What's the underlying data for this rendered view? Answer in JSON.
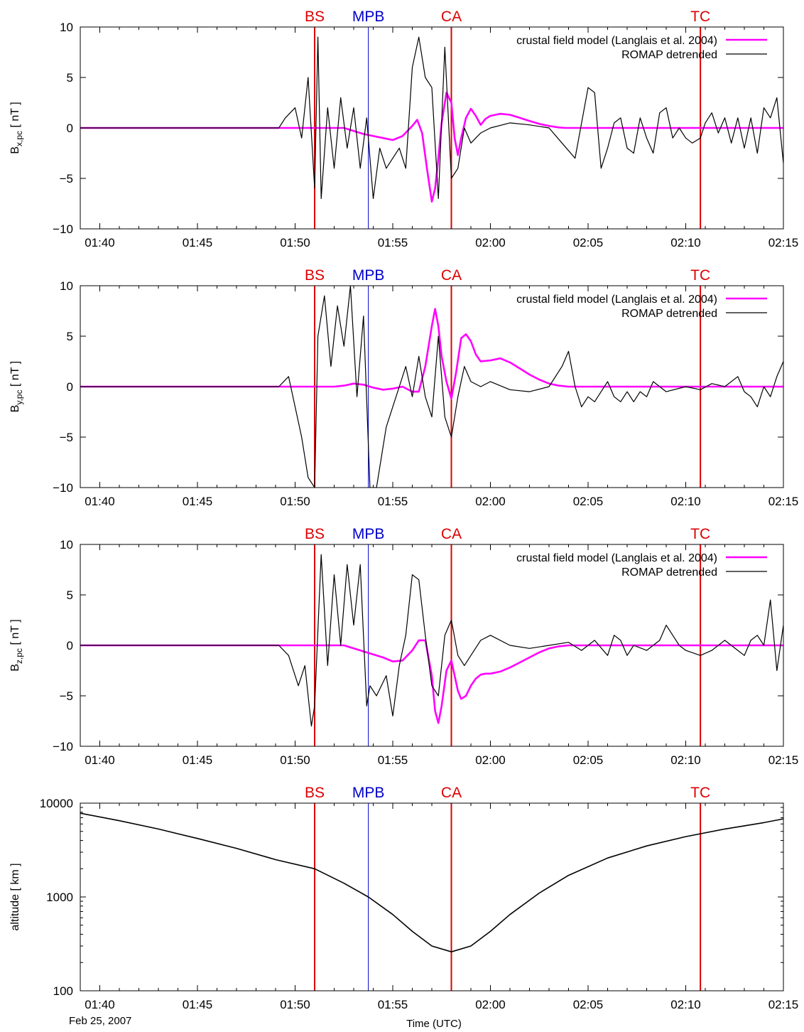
{
  "figure": {
    "date_label": "Feb 25, 2007",
    "xlabel": "Time (UTC)"
  },
  "colors": {
    "model": "#ff00ff",
    "romap": "#000000",
    "red_marker": "#dd0000",
    "blue_marker": "#0000cc"
  },
  "markers": [
    {
      "label": "BS",
      "time": "01:51:00",
      "color": "red"
    },
    {
      "label": "MPB",
      "time": "01:53:45",
      "color": "blue"
    },
    {
      "label": "CA",
      "time": "01:58:00",
      "color": "red"
    },
    {
      "label": "TC",
      "time": "02:10:45",
      "color": "red"
    }
  ],
  "chart_data": [
    {
      "type": "line",
      "ylabel": "B_x,pc [ nT ]",
      "ylabel_main": "B",
      "ylabel_sub": "x,pc",
      "ylabel_unit": " [ nT ]",
      "xlim": [
        "01:39:00",
        "02:15:00"
      ],
      "ylim": [
        -10,
        10
      ],
      "xticks": [
        "01:40",
        "01:45",
        "01:50",
        "01:55",
        "02:00",
        "02:05",
        "02:10",
        "02:15"
      ],
      "yticks": [
        "10",
        "5",
        "0",
        "−5",
        "−10"
      ],
      "yticks_values": [
        10,
        5,
        0,
        -5,
        -10
      ],
      "legend": [
        "crustal field model (Langlais et al. 2004)",
        "ROMAP detrended"
      ],
      "legend_position": "top-right",
      "series": [
        {
          "name": "crustal field model (Langlais et al. 2004)",
          "x": [
            "01:39:00",
            "01:52:30",
            "01:53:00",
            "01:53:30",
            "01:54:00",
            "01:54:30",
            "01:55:00",
            "01:55:30",
            "01:56:00",
            "01:56:15",
            "01:56:30",
            "01:56:45",
            "01:57:00",
            "01:57:10",
            "01:57:20",
            "01:57:30",
            "01:57:45",
            "01:58:00",
            "01:58:10",
            "01:58:20",
            "01:58:30",
            "01:58:45",
            "01:59:00",
            "01:59:15",
            "01:59:30",
            "01:59:45",
            "02:00:00",
            "02:00:30",
            "02:01:00",
            "02:01:30",
            "02:02:00",
            "02:02:30",
            "02:03:00",
            "02:03:30",
            "02:03:50",
            "02:15:00"
          ],
          "y": [
            0,
            0,
            -0.3,
            -0.6,
            -0.8,
            -1.0,
            -1.2,
            -0.8,
            0.2,
            0.8,
            -0.5,
            -4,
            -7.3,
            -6,
            -3,
            0.5,
            3.5,
            2.5,
            -1,
            -2.7,
            -1,
            1,
            1.9,
            1.2,
            0.3,
            0.9,
            1.2,
            1.4,
            1.3,
            1.0,
            0.7,
            0.4,
            0.2,
            0.05,
            0,
            0
          ]
        },
        {
          "name": "ROMAP detrended",
          "x": [
            "01:39:00",
            "01:49:10",
            "01:49:30",
            "01:50:00",
            "01:50:20",
            "01:50:40",
            "01:51:00",
            "01:51:10",
            "01:51:20",
            "01:51:40",
            "01:52:00",
            "01:52:20",
            "01:52:40",
            "01:53:00",
            "01:53:20",
            "01:53:40",
            "01:54:00",
            "01:54:20",
            "01:54:40",
            "01:55:00",
            "01:55:20",
            "01:55:40",
            "01:56:00",
            "01:56:20",
            "01:56:40",
            "01:57:00",
            "01:57:20",
            "01:57:40",
            "01:58:00",
            "01:58:20",
            "01:58:40",
            "01:59:00",
            "01:59:30",
            "02:00:00",
            "02:01:00",
            "02:02:00",
            "02:03:00",
            "02:03:40",
            "02:04:20",
            "02:05:00",
            "02:05:20",
            "02:05:40",
            "02:06:00",
            "02:06:20",
            "02:06:40",
            "02:07:00",
            "02:07:20",
            "02:07:40",
            "02:08:00",
            "02:08:20",
            "02:08:40",
            "02:09:00",
            "02:09:20",
            "02:09:40",
            "02:10:00",
            "02:10:20",
            "02:10:45",
            "02:11:00",
            "02:11:20",
            "02:11:40",
            "02:12:00",
            "02:12:20",
            "02:12:40",
            "02:13:00",
            "02:13:20",
            "02:13:40",
            "02:14:00",
            "02:14:20",
            "02:14:40",
            "02:15:00"
          ],
          "y": [
            0,
            0,
            1,
            2,
            -1,
            5,
            -6,
            9,
            -7,
            2,
            -4,
            3,
            -2,
            2,
            -4,
            1,
            -7,
            -2,
            -4,
            -3,
            -2,
            -4,
            6,
            9,
            5,
            4,
            -7,
            8,
            -5,
            -4,
            0,
            -1.5,
            -0.5,
            0,
            0.5,
            0.3,
            0,
            -1.5,
            -3,
            4,
            3.5,
            -4,
            -2,
            0.5,
            1,
            -2,
            -2.5,
            1,
            -1,
            -2.5,
            1.5,
            2,
            -1,
            0,
            -1,
            -1.5,
            -1,
            0.5,
            1.5,
            -0.5,
            1,
            -1.5,
            1,
            -2,
            1,
            -2.5,
            2,
            1,
            3,
            -3.5
          ]
        }
      ]
    },
    {
      "type": "line",
      "ylabel": "B_y,pc [ nT ]",
      "ylabel_main": "B",
      "ylabel_sub": "y,pc",
      "ylabel_unit": " [ nT ]",
      "xlim": [
        "01:39:00",
        "02:15:00"
      ],
      "ylim": [
        -10,
        10
      ],
      "xticks": [
        "01:40",
        "01:45",
        "01:50",
        "01:55",
        "02:00",
        "02:05",
        "02:10",
        "02:15"
      ],
      "yticks": [
        "10",
        "5",
        "0",
        "−5",
        "−10"
      ],
      "yticks_values": [
        10,
        5,
        0,
        -5,
        -10
      ],
      "legend": [
        "crustal field model (Langlais et al. 2004)",
        "ROMAP detrended"
      ],
      "legend_position": "top-right",
      "series": [
        {
          "name": "crustal field model (Langlais et al. 2004)",
          "x": [
            "01:39:00",
            "01:52:00",
            "01:52:30",
            "01:53:00",
            "01:53:30",
            "01:54:00",
            "01:54:30",
            "01:55:00",
            "01:55:30",
            "01:56:00",
            "01:56:20",
            "01:56:40",
            "01:57:00",
            "01:57:10",
            "01:57:20",
            "01:57:30",
            "01:57:45",
            "01:58:00",
            "01:58:15",
            "01:58:30",
            "01:58:45",
            "01:59:00",
            "01:59:15",
            "01:59:30",
            "02:00:00",
            "02:00:30",
            "02:01:00",
            "02:01:30",
            "02:02:00",
            "02:02:30",
            "02:03:00",
            "02:03:30",
            "02:04:00",
            "02:15:00"
          ],
          "y": [
            0,
            0,
            0.1,
            0.3,
            0.2,
            -0.1,
            -0.3,
            -0.2,
            0,
            -0.5,
            -0.5,
            2,
            6,
            7.7,
            6,
            3,
            0.5,
            -1.2,
            1.5,
            4.8,
            5.2,
            4.5,
            3.2,
            2.5,
            2.6,
            2.8,
            2.4,
            1.8,
            1.2,
            0.7,
            0.3,
            0.1,
            0,
            0
          ]
        },
        {
          "name": "ROMAP detrended",
          "x": [
            "01:39:00",
            "01:49:10",
            "01:49:40",
            "01:50:00",
            "01:50:20",
            "01:50:40",
            "01:51:00",
            "01:51:10",
            "01:51:30",
            "01:51:50",
            "01:52:10",
            "01:52:30",
            "01:52:50",
            "01:53:10",
            "01:53:30",
            "01:53:50",
            "01:54:10",
            "01:54:40",
            "01:55:00",
            "01:55:20",
            "01:55:40",
            "01:56:00",
            "01:56:20",
            "01:56:40",
            "01:57:00",
            "01:57:20",
            "01:57:40",
            "01:58:00",
            "01:58:20",
            "01:58:40",
            "01:59:00",
            "01:59:30",
            "02:00:00",
            "02:01:00",
            "02:02:00",
            "02:03:00",
            "02:03:40",
            "02:04:00",
            "02:04:20",
            "02:04:40",
            "02:05:00",
            "02:05:20",
            "02:05:40",
            "02:06:00",
            "02:06:20",
            "02:06:40",
            "02:07:00",
            "02:07:20",
            "02:07:40",
            "02:08:00",
            "02:08:20",
            "02:08:40",
            "02:09:00",
            "02:10:00",
            "02:10:45",
            "02:11:20",
            "02:12:00",
            "02:12:40",
            "02:13:00",
            "02:13:20",
            "02:13:40",
            "02:14:00",
            "02:14:20",
            "02:14:40",
            "02:15:00"
          ],
          "y": [
            0,
            0,
            1,
            -2,
            -5,
            -9,
            -10,
            5,
            9,
            2,
            8,
            4,
            10,
            -1,
            7,
            -10,
            -10,
            -4,
            -2,
            0,
            2,
            -1,
            3,
            -1,
            -3,
            5,
            -3,
            -5,
            -1,
            2,
            0.5,
            0,
            0.5,
            -0.3,
            -0.5,
            0,
            2,
            3.5,
            0,
            -2,
            -1,
            -1.5,
            -0.5,
            0.5,
            -1,
            -1.5,
            -0.5,
            -1.5,
            -0.5,
            -1,
            0.5,
            0,
            -0.5,
            0,
            -0.3,
            0.3,
            0,
            1,
            -0.5,
            -1,
            -2,
            0,
            -1,
            1,
            2.5
          ]
        }
      ]
    },
    {
      "type": "line",
      "ylabel": "B_z,pc [ nT ]",
      "ylabel_main": "B",
      "ylabel_sub": "z,pc",
      "ylabel_unit": " [ nT ]",
      "xlim": [
        "01:39:00",
        "02:15:00"
      ],
      "ylim": [
        -10,
        10
      ],
      "xticks": [
        "01:40",
        "01:45",
        "01:50",
        "01:55",
        "02:00",
        "02:05",
        "02:10",
        "02:15"
      ],
      "yticks": [
        "10",
        "5",
        "0",
        "−5",
        "−10"
      ],
      "yticks_values": [
        10,
        5,
        0,
        -5,
        -10
      ],
      "legend": [
        "crustal field model (Langlais et al. 2004)",
        "ROMAP detrended"
      ],
      "legend_position": "top-right",
      "series": [
        {
          "name": "crustal field model (Langlais et al. 2004)",
          "x": [
            "01:39:00",
            "01:52:30",
            "01:53:00",
            "01:53:30",
            "01:54:00",
            "01:54:30",
            "01:55:00",
            "01:55:30",
            "01:56:00",
            "01:56:20",
            "01:56:40",
            "01:57:00",
            "01:57:10",
            "01:57:20",
            "01:57:30",
            "01:57:45",
            "01:58:00",
            "01:58:10",
            "01:58:20",
            "01:58:30",
            "01:58:45",
            "01:59:00",
            "01:59:15",
            "01:59:30",
            "01:59:45",
            "02:00:00",
            "02:00:30",
            "02:01:00",
            "02:01:30",
            "02:02:00",
            "02:02:30",
            "02:03:00",
            "02:03:30",
            "02:04:00",
            "02:15:00"
          ],
          "y": [
            0,
            0,
            -0.3,
            -0.6,
            -0.9,
            -1.2,
            -1.6,
            -1.5,
            -0.5,
            0.5,
            0.5,
            -3,
            -6.5,
            -7.7,
            -6,
            -2.5,
            -1.5,
            -3,
            -4.5,
            -5.3,
            -5,
            -4,
            -3.3,
            -2.9,
            -2.8,
            -2.8,
            -2.6,
            -2.2,
            -1.7,
            -1.2,
            -0.7,
            -0.3,
            -0.1,
            0,
            0
          ]
        },
        {
          "name": "ROMAP detrended",
          "x": [
            "01:39:00",
            "01:49:10",
            "01:49:40",
            "01:50:10",
            "01:50:30",
            "01:50:50",
            "01:51:00",
            "01:51:20",
            "01:51:40",
            "01:52:00",
            "01:52:20",
            "01:52:40",
            "01:53:00",
            "01:53:20",
            "01:53:40",
            "01:53:50",
            "01:54:10",
            "01:54:40",
            "01:55:00",
            "01:55:20",
            "01:55:40",
            "01:56:00",
            "01:56:20",
            "01:56:40",
            "01:57:00",
            "01:57:20",
            "01:57:40",
            "01:58:00",
            "01:58:20",
            "01:58:40",
            "01:59:00",
            "01:59:30",
            "02:00:00",
            "02:01:00",
            "02:02:00",
            "02:03:00",
            "02:04:00",
            "02:04:40",
            "02:05:20",
            "02:06:00",
            "02:06:20",
            "02:06:40",
            "02:07:00",
            "02:07:20",
            "02:08:00",
            "02:08:40",
            "02:09:00",
            "02:09:20",
            "02:09:40",
            "02:10:00",
            "02:10:45",
            "02:11:20",
            "02:12:00",
            "02:12:40",
            "02:13:00",
            "02:13:20",
            "02:13:40",
            "02:14:00",
            "02:14:20",
            "02:14:40",
            "02:15:00"
          ],
          "y": [
            0,
            0,
            -1,
            -4,
            -2,
            -8,
            -6,
            9,
            -2,
            7,
            0,
            8,
            2,
            8,
            -6,
            -4,
            -5,
            -3,
            -7,
            -2,
            1,
            7,
            6.5,
            1,
            -4,
            -5,
            1,
            2.5,
            -1,
            -2,
            -1,
            0.5,
            1,
            0,
            -0.3,
            0,
            0.3,
            -0.5,
            0.5,
            -1,
            1,
            0.5,
            -1,
            0,
            -0.5,
            0.5,
            2,
            1,
            0,
            -0.5,
            -1,
            -0.5,
            0.5,
            -0.5,
            -1,
            0.5,
            1,
            0,
            4.5,
            -2.5,
            2
          ]
        }
      ]
    },
    {
      "type": "line",
      "ylabel": "altitude [ km ]",
      "xlim": [
        "01:39:00",
        "02:15:00"
      ],
      "ylim": [
        100,
        10000
      ],
      "yscale": "log",
      "xticks": [
        "01:40",
        "01:45",
        "01:50",
        "01:55",
        "02:00",
        "02:05",
        "02:10",
        "02:15"
      ],
      "yticks": [
        "10000",
        "1000",
        "100"
      ],
      "yticks_values": [
        10000,
        1000,
        100
      ],
      "series": [
        {
          "x": [
            "01:39:00",
            "01:41:00",
            "01:43:00",
            "01:45:00",
            "01:47:00",
            "01:49:00",
            "01:51:00",
            "01:52:30",
            "01:53:45",
            "01:55:00",
            "01:56:00",
            "01:57:00",
            "01:58:00",
            "01:59:00",
            "02:00:00",
            "02:01:00",
            "02:02:30",
            "02:04:00",
            "02:06:00",
            "02:08:00",
            "02:10:00",
            "02:12:00",
            "02:14:00",
            "02:15:00"
          ],
          "y": [
            7800,
            6500,
            5300,
            4200,
            3300,
            2500,
            2000,
            1400,
            1000,
            650,
            430,
            300,
            260,
            300,
            430,
            650,
            1100,
            1700,
            2600,
            3500,
            4400,
            5300,
            6200,
            6800
          ]
        }
      ]
    }
  ]
}
